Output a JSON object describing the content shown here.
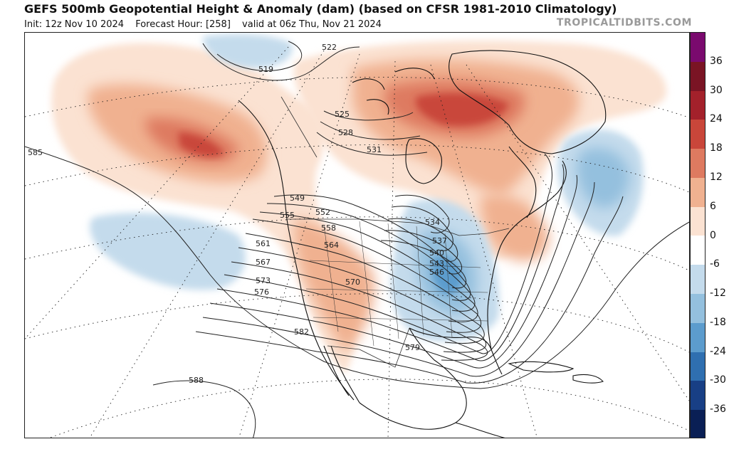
{
  "header": {
    "title": "GEFS 500mb Geopotential Height & Anomaly (dam) (based on CFSR 1981-2010 Climatology)",
    "init": "Init: 12z Nov 10 2024",
    "forecast_hour": "Forecast Hour: [258]",
    "valid": "valid at 06z Thu, Nov 21 2024",
    "brand": "TROPICALTIDBITS.COM"
  },
  "colorbar": {
    "tick_labels": [
      "36",
      "30",
      "24",
      "18",
      "12",
      "6",
      "0",
      "-6",
      "-12",
      "-18",
      "-24",
      "-30",
      "-36"
    ],
    "bins": [
      {
        "value": 39,
        "color": "#7a0a6e"
      },
      {
        "value": 33,
        "color": "#7a1424"
      },
      {
        "value": 27,
        "color": "#a3212b"
      },
      {
        "value": 21,
        "color": "#c9463a"
      },
      {
        "value": 15,
        "color": "#de7a60"
      },
      {
        "value": 9,
        "color": "#f0b190"
      },
      {
        "value": 3,
        "color": "#fbe2d2"
      },
      {
        "value": -3,
        "color": "#ffffff"
      },
      {
        "value": -9,
        "color": "#c4dbec"
      },
      {
        "value": -15,
        "color": "#94c0de"
      },
      {
        "value": -21,
        "color": "#5c9ccd"
      },
      {
        "value": -27,
        "color": "#2f6fb0"
      },
      {
        "value": -33,
        "color": "#183f85"
      },
      {
        "value": -39,
        "color": "#0a1f55"
      }
    ]
  },
  "map": {
    "contour_labels": [
      "519",
      "522",
      "525",
      "528",
      "531",
      "534",
      "537",
      "540",
      "543",
      "546",
      "549",
      "552",
      "555",
      "558",
      "561",
      "564",
      "567",
      "570",
      "573",
      "576",
      "579",
      "582",
      "585",
      "588"
    ]
  }
}
